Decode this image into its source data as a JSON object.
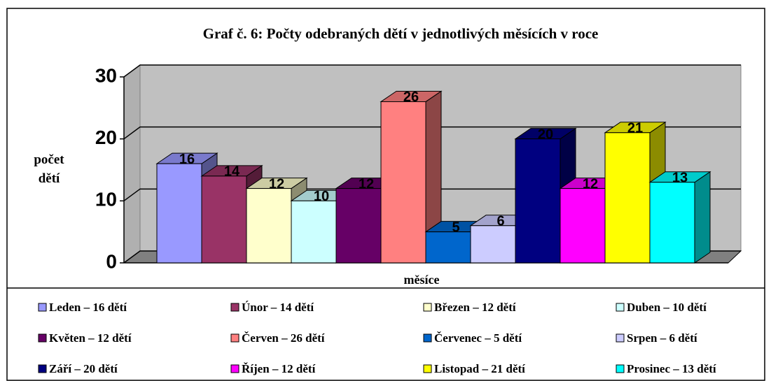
{
  "chart_data": {
    "type": "bar3d",
    "title": "Graf č. 6: Počty odebraných dětí v jednotlivých měsících v roce",
    "ylabel": "počet dětí",
    "xlabel": "měsíce",
    "ylim": [
      0,
      30
    ],
    "yticks": [
      0,
      10,
      20,
      30
    ],
    "grid": true,
    "series": [
      {
        "name": "Leden – 16 dětí",
        "color": "#9999ff",
        "values": [
          16
        ]
      },
      {
        "name": "Únor – 14 dětí",
        "color": "#993366",
        "values": [
          14
        ]
      },
      {
        "name": "Březen – 12 dětí",
        "color": "#ffffcc",
        "values": [
          12
        ]
      },
      {
        "name": "Duben – 10 dětí",
        "color": "#ccffff",
        "values": [
          10
        ]
      },
      {
        "name": "Květen – 12 dětí",
        "color": "#660066",
        "values": [
          12
        ]
      },
      {
        "name": "Červen – 26 dětí",
        "color": "#ff8080",
        "values": [
          26
        ]
      },
      {
        "name": "Červenec – 5 dětí",
        "color": "#0066cc",
        "values": [
          5
        ]
      },
      {
        "name": "Srpen – 6 dětí",
        "color": "#ccccff",
        "values": [
          6
        ]
      },
      {
        "name": "Září – 20 dětí",
        "color": "#000080",
        "values": [
          20
        ]
      },
      {
        "name": "Říjen – 12 dětí",
        "color": "#ff00ff",
        "values": [
          12
        ]
      },
      {
        "name": "Listopad – 21 dětí",
        "color": "#ffff00",
        "values": [
          21
        ]
      },
      {
        "name": "Prosinec – 13 dětí",
        "color": "#00ffff",
        "values": [
          13
        ]
      }
    ]
  }
}
